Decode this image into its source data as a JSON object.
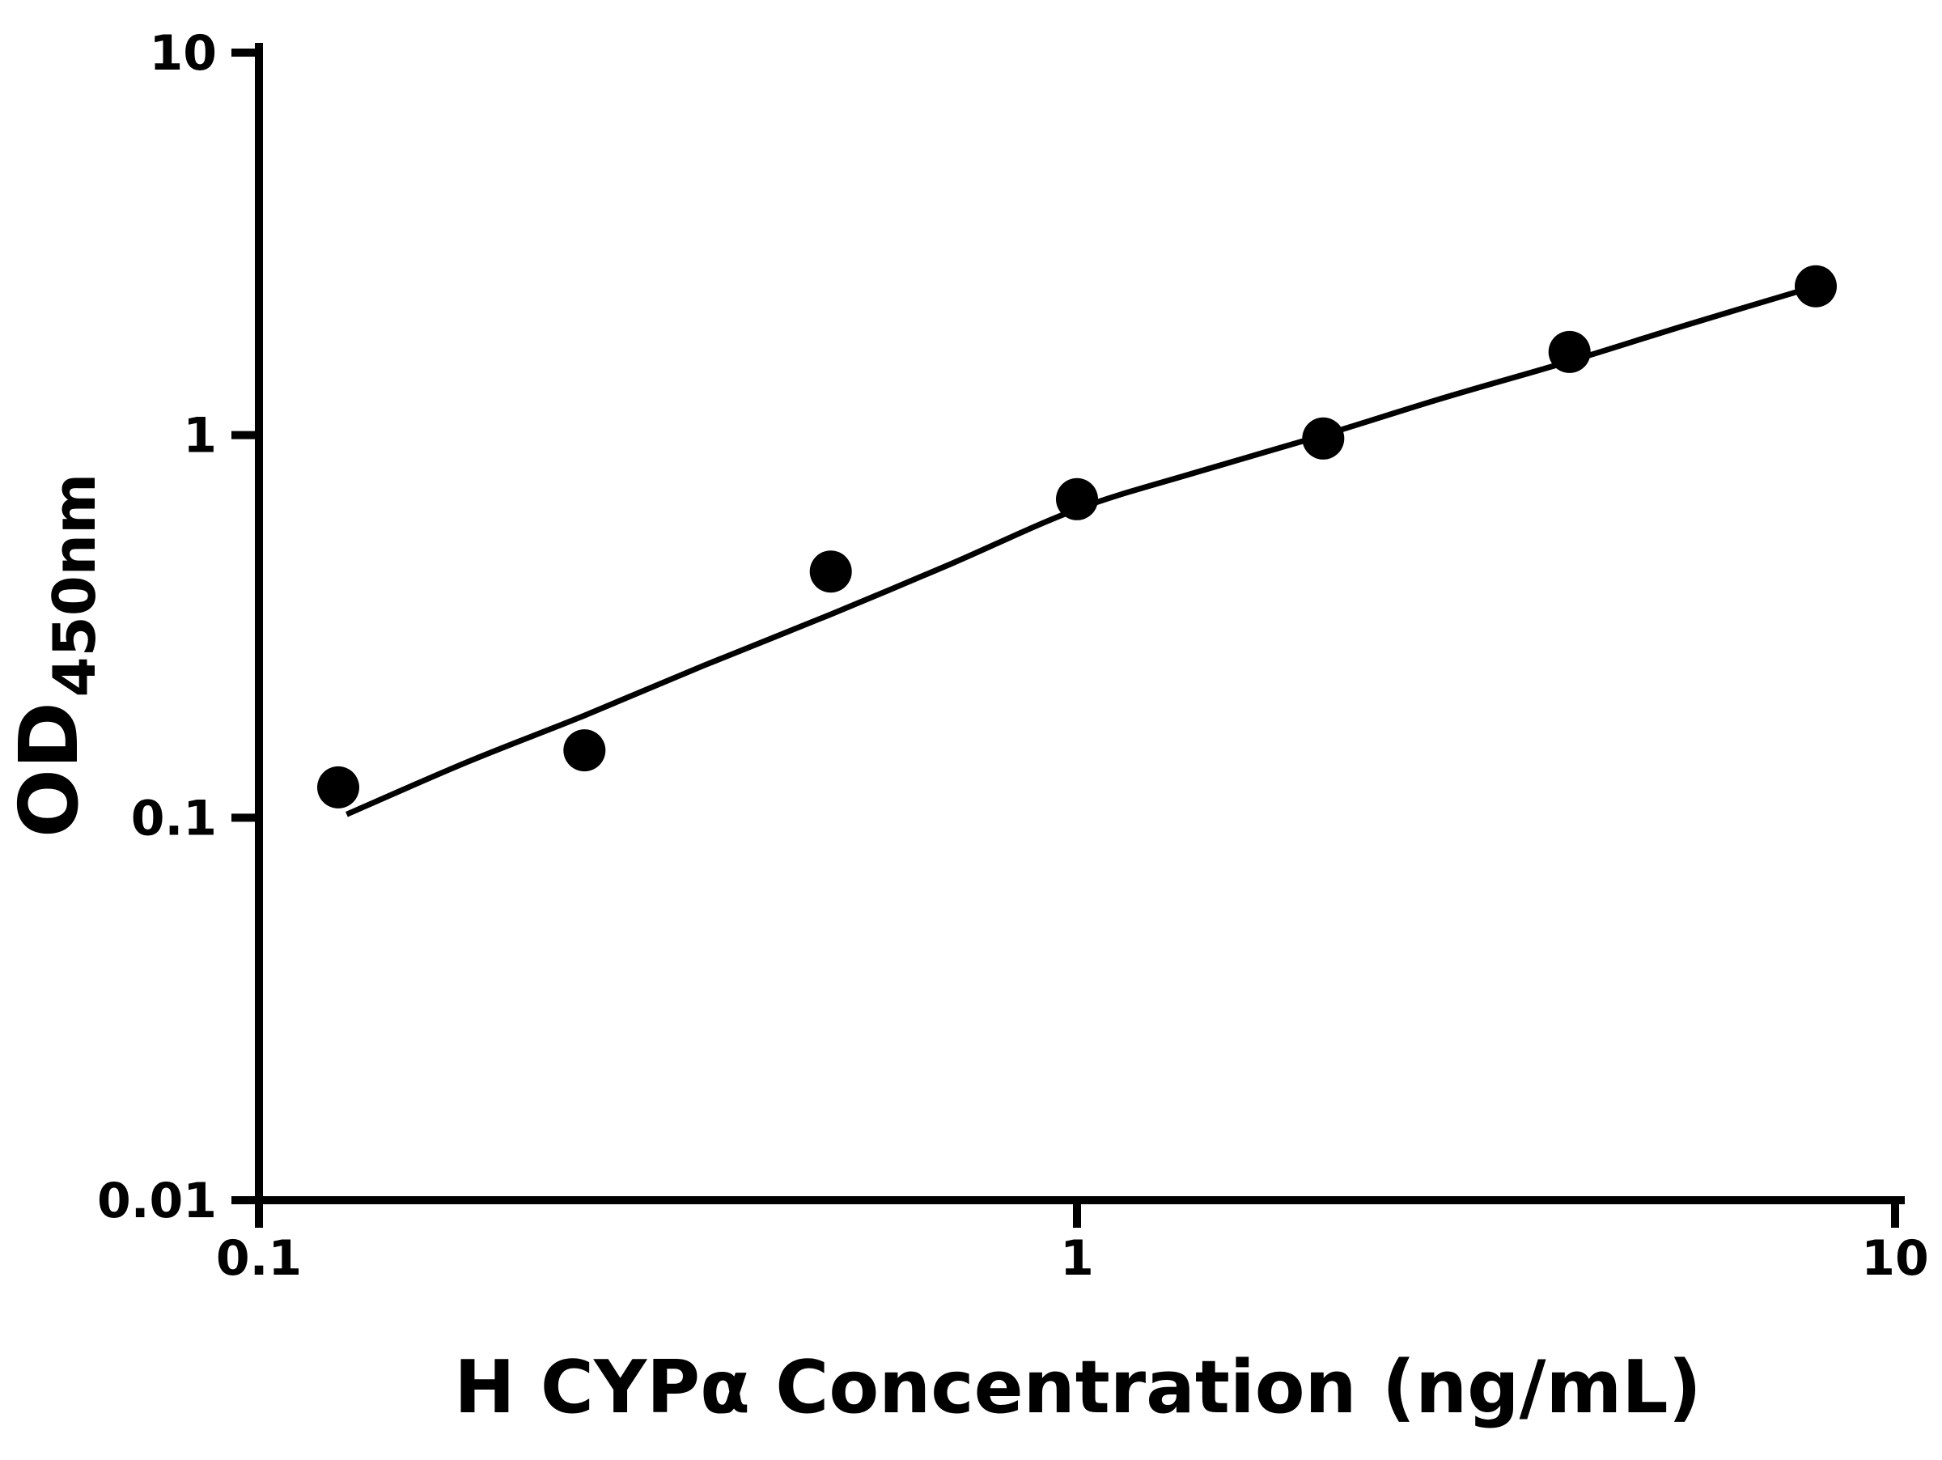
{
  "chart_data": {
    "type": "scatter",
    "title": "",
    "xlabel": "H CYPα Concentration (ng/mL)",
    "ylabel_main": "OD",
    "ylabel_sub": "450nm",
    "x_scale": "log",
    "y_scale": "log",
    "xlim": [
      0.1,
      10
    ],
    "ylim": [
      0.01,
      10
    ],
    "grid": false,
    "legend": false,
    "axis_color": "#000000",
    "marker_color": "#000000",
    "curve_color": "#000000",
    "background_color": "#ffffff",
    "x_ticks": [
      {
        "value": 0.1,
        "label": "0.1"
      },
      {
        "value": 1,
        "label": "1"
      },
      {
        "value": 10,
        "label": "10"
      }
    ],
    "y_ticks": [
      {
        "value": 0.01,
        "label": "0.01"
      },
      {
        "value": 0.1,
        "label": "0.1"
      },
      {
        "value": 1,
        "label": "1"
      },
      {
        "value": 10,
        "label": "10"
      }
    ],
    "series": [
      {
        "name": "standard-points",
        "type": "scatter",
        "marker": "circle",
        "points": [
          [
            0.125,
            0.12
          ],
          [
            0.25,
            0.15
          ],
          [
            0.5,
            0.44
          ],
          [
            1,
            0.68
          ],
          [
            2,
            0.98
          ],
          [
            4,
            1.65
          ],
          [
            8,
            2.45
          ]
        ]
      },
      {
        "name": "fit-curve",
        "type": "line",
        "points": [
          [
            0.128,
            0.102
          ],
          [
            0.18,
            0.14
          ],
          [
            0.25,
            0.185
          ],
          [
            0.35,
            0.25
          ],
          [
            0.5,
            0.34
          ],
          [
            0.7,
            0.46
          ],
          [
            1.0,
            0.64
          ],
          [
            1.4,
            0.8
          ],
          [
            2.0,
            1.0
          ],
          [
            2.8,
            1.25
          ],
          [
            4.0,
            1.56
          ],
          [
            5.6,
            1.95
          ],
          [
            8.0,
            2.45
          ]
        ]
      }
    ]
  }
}
